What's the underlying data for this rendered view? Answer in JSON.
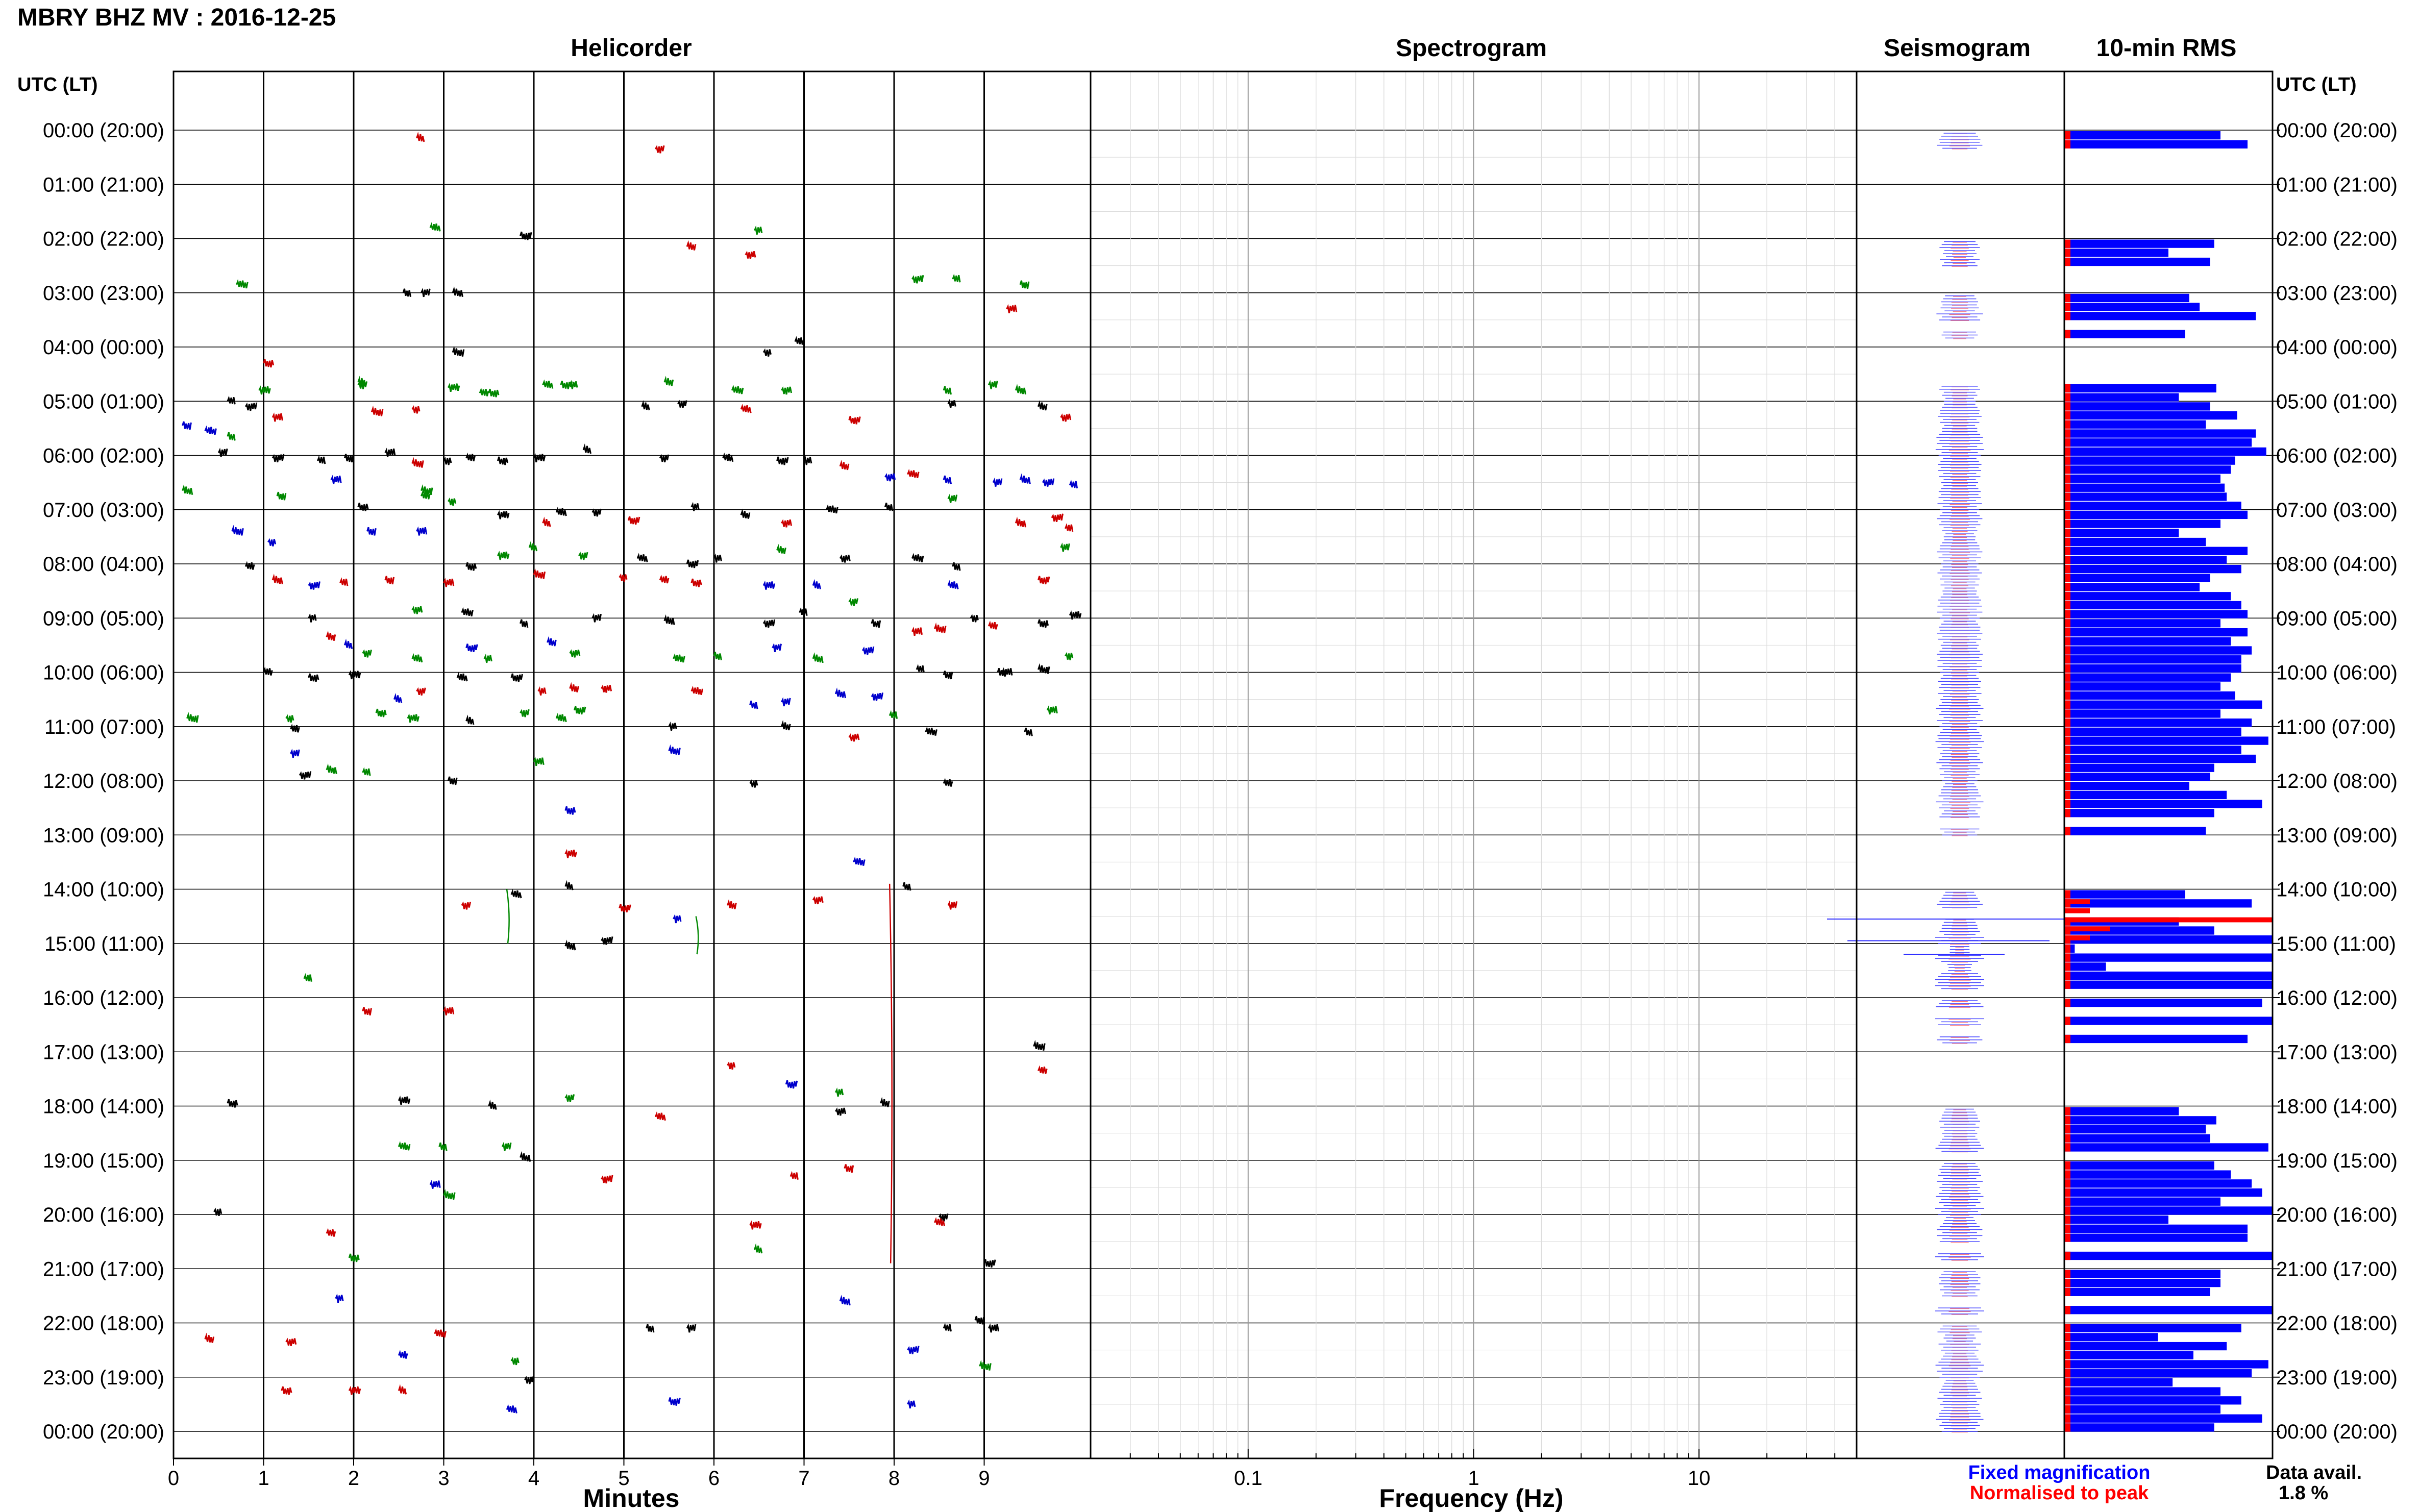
{
  "header": {
    "title": "MBRY BHZ MV : 2016-12-25"
  },
  "panels": {
    "helicorder": "Helicorder",
    "spectrogram": "Spectrogram",
    "seismogram": "Seismogram",
    "rms": "10-min RMS"
  },
  "axis_labels": {
    "utc_left": "UTC (LT)",
    "utc_right": "UTC (LT)",
    "minutes": "Minutes",
    "frequency": "Frequency (Hz)"
  },
  "legend": {
    "fixed": "Fixed magnification",
    "fixed_color": "#0000ff",
    "normalised": "Normalised to peak",
    "normalised_color": "#ff0000"
  },
  "data_avail": {
    "label": "Data avail.",
    "value": "1.8 %"
  },
  "colors": {
    "trace": [
      "#000000",
      "#cc0000",
      "#0000cc",
      "#008800"
    ],
    "rms_bar": "#0000ff",
    "rms_peak": "#ff0000"
  },
  "chart_data": [
    {
      "type": "scatter",
      "name": "helicorder",
      "title": "Helicorder",
      "xlabel": "Minutes",
      "ylabel": "UTC (LT)",
      "xlim": [
        0,
        10
      ],
      "x_ticks": [
        "0",
        "1",
        "2",
        "3",
        "4",
        "5",
        "6",
        "7",
        "8",
        "9"
      ],
      "y_ticks": [
        "00:00 (20:00)",
        "01:00 (21:00)",
        "02:00 (22:00)",
        "03:00 (23:00)",
        "04:00 (00:00)",
        "05:00 (01:00)",
        "06:00 (02:00)",
        "07:00 (03:00)",
        "08:00 (04:00)",
        "09:00 (05:00)",
        "10:00 (06:00)",
        "11:00 (07:00)",
        "12:00 (08:00)",
        "13:00 (09:00)",
        "14:00 (10:00)",
        "15:00 (11:00)",
        "16:00 (12:00)",
        "17:00 (13:00)",
        "18:00 (14:00)",
        "19:00 (15:00)",
        "20:00 (16:00)",
        "21:00 (17:00)",
        "22:00 (18:00)",
        "23:00 (19:00)",
        "00:00 (20:00)"
      ],
      "events": [
        [
          2.7,
          0.15
        ],
        [
          5.35,
          0.35
        ],
        [
          2.85,
          1.8
        ],
        [
          3.85,
          1.95
        ],
        [
          6.45,
          1.85
        ],
        [
          5.7,
          2.15
        ],
        [
          6.35,
          2.3
        ],
        [
          0.7,
          2.85
        ],
        [
          2.55,
          3.0
        ],
        [
          2.75,
          3.0
        ],
        [
          3.1,
          3.0
        ],
        [
          8.2,
          2.75
        ],
        [
          8.65,
          2.75
        ],
        [
          9.4,
          2.85
        ],
        [
          9.25,
          3.3
        ],
        [
          3.1,
          4.1
        ],
        [
          6.55,
          4.1
        ],
        [
          6.9,
          3.9
        ],
        [
          1.0,
          4.3
        ],
        [
          0.95,
          4.8
        ],
        [
          2.05,
          4.65
        ],
        [
          2.05,
          4.7
        ],
        [
          4.1,
          4.7
        ],
        [
          4.3,
          4.7
        ],
        [
          4.4,
          4.7
        ],
        [
          5.45,
          4.65
        ],
        [
          6.75,
          4.8
        ],
        [
          6.2,
          4.8
        ],
        [
          8.55,
          4.8
        ],
        [
          9.05,
          4.7
        ],
        [
          9.35,
          4.8
        ],
        [
          0.8,
          5.1
        ],
        [
          0.6,
          5.0
        ],
        [
          0.1,
          5.45
        ],
        [
          1.1,
          5.3
        ],
        [
          2.2,
          5.2
        ],
        [
          2.65,
          5.15
        ],
        [
          3.4,
          4.85
        ],
        [
          3.5,
          4.85
        ],
        [
          3.05,
          4.75
        ],
        [
          5.2,
          5.1
        ],
        [
          5.6,
          5.05
        ],
        [
          6.3,
          5.15
        ],
        [
          7.5,
          5.35
        ],
        [
          8.6,
          5.05
        ],
        [
          9.6,
          5.1
        ],
        [
          9.85,
          5.3
        ],
        [
          0.35,
          5.55
        ],
        [
          0.6,
          5.65
        ],
        [
          0.5,
          5.95
        ],
        [
          0.1,
          6.65
        ],
        [
          1.1,
          6.05
        ],
        [
          1.6,
          6.1
        ],
        [
          1.9,
          6.05
        ],
        [
          2.35,
          5.95
        ],
        [
          2.65,
          6.15
        ],
        [
          3.0,
          6.1
        ],
        [
          3.25,
          6.05
        ],
        [
          3.6,
          6.1
        ],
        [
          4.0,
          6.05
        ],
        [
          4.55,
          5.9
        ],
        [
          5.4,
          6.05
        ],
        [
          6.1,
          6.05
        ],
        [
          6.7,
          6.1
        ],
        [
          7.0,
          6.1
        ],
        [
          7.4,
          6.2
        ],
        [
          7.9,
          6.4
        ],
        [
          8.15,
          6.35
        ],
        [
          8.55,
          6.45
        ],
        [
          9.1,
          6.5
        ],
        [
          9.4,
          6.45
        ],
        [
          9.65,
          6.5
        ],
        [
          9.95,
          6.55
        ],
        [
          1.15,
          6.75
        ],
        [
          1.75,
          6.45
        ],
        [
          2.75,
          6.65
        ],
        [
          3.05,
          6.85
        ],
        [
          2.75,
          6.75
        ],
        [
          2.05,
          6.95
        ],
        [
          3.6,
          7.1
        ],
        [
          4.1,
          7.25
        ],
        [
          4.65,
          7.05
        ],
        [
          4.25,
          7.05
        ],
        [
          5.05,
          7.2
        ],
        [
          5.75,
          6.95
        ],
        [
          6.3,
          7.1
        ],
        [
          6.75,
          7.25
        ],
        [
          7.25,
          7.0
        ],
        [
          7.9,
          6.95
        ],
        [
          8.6,
          6.8
        ],
        [
          9.35,
          7.25
        ],
        [
          9.75,
          7.15
        ],
        [
          9.9,
          7.35
        ],
        [
          2.15,
          7.4
        ],
        [
          2.7,
          7.4
        ],
        [
          0.65,
          7.4
        ],
        [
          1.05,
          7.6
        ],
        [
          0.8,
          8.05
        ],
        [
          3.25,
          8.05
        ],
        [
          3.6,
          7.85
        ],
        [
          3.95,
          7.7
        ],
        [
          4.5,
          7.85
        ],
        [
          5.15,
          7.9
        ],
        [
          5.7,
          8.0
        ],
        [
          6.0,
          7.9
        ],
        [
          6.7,
          7.75
        ],
        [
          7.4,
          7.9
        ],
        [
          8.2,
          7.9
        ],
        [
          8.65,
          8.05
        ],
        [
          9.85,
          7.7
        ],
        [
          1.1,
          8.3
        ],
        [
          1.5,
          8.4
        ],
        [
          1.85,
          8.35
        ],
        [
          2.35,
          8.3
        ],
        [
          3.0,
          8.35
        ],
        [
          4.0,
          8.2
        ],
        [
          4.95,
          8.25
        ],
        [
          5.4,
          8.3
        ],
        [
          5.75,
          8.35
        ],
        [
          6.55,
          8.4
        ],
        [
          7.1,
          8.4
        ],
        [
          7.5,
          8.7
        ],
        [
          8.6,
          8.4
        ],
        [
          9.6,
          8.3
        ],
        [
          1.5,
          9.0
        ],
        [
          1.7,
          9.35
        ],
        [
          2.65,
          8.85
        ],
        [
          3.2,
          8.9
        ],
        [
          3.85,
          9.1
        ],
        [
          4.65,
          9.0
        ],
        [
          5.45,
          9.05
        ],
        [
          6.55,
          9.1
        ],
        [
          6.95,
          8.9
        ],
        [
          7.75,
          9.1
        ],
        [
          8.2,
          9.25
        ],
        [
          8.45,
          9.2
        ],
        [
          8.85,
          9.0
        ],
        [
          9.05,
          9.15
        ],
        [
          9.6,
          9.1
        ],
        [
          9.95,
          8.95
        ],
        [
          1.9,
          9.5
        ],
        [
          2.1,
          9.65
        ],
        [
          2.65,
          9.75
        ],
        [
          3.25,
          9.55
        ],
        [
          3.45,
          9.75
        ],
        [
          4.15,
          9.45
        ],
        [
          4.4,
          9.65
        ],
        [
          5.55,
          9.75
        ],
        [
          6.0,
          9.7
        ],
        [
          6.65,
          9.55
        ],
        [
          7.1,
          9.75
        ],
        [
          7.65,
          9.6
        ],
        [
          8.25,
          9.95
        ],
        [
          8.55,
          10.05
        ],
        [
          9.2,
          10.0
        ],
        [
          9.6,
          9.95
        ],
        [
          9.9,
          9.7
        ],
        [
          1.0,
          10.0
        ],
        [
          1.5,
          10.1
        ],
        [
          1.95,
          10.05
        ],
        [
          2.45,
          10.5
        ],
        [
          2.7,
          10.35
        ],
        [
          3.15,
          10.1
        ],
        [
          3.75,
          10.1
        ],
        [
          4.05,
          10.35
        ],
        [
          4.4,
          10.3
        ],
        [
          4.75,
          10.3
        ],
        [
          5.75,
          10.35
        ],
        [
          6.4,
          10.6
        ],
        [
          6.75,
          10.55
        ],
        [
          7.35,
          10.4
        ],
        [
          7.75,
          10.45
        ],
        [
          7.95,
          10.8
        ],
        [
          9.15,
          10.0
        ],
        [
          9.7,
          10.7
        ],
        [
          0.15,
          10.85
        ],
        [
          1.25,
          10.85
        ],
        [
          1.3,
          11.05
        ],
        [
          2.25,
          10.75
        ],
        [
          2.6,
          10.85
        ],
        [
          3.25,
          10.9
        ],
        [
          3.85,
          10.75
        ],
        [
          4.25,
          10.85
        ],
        [
          4.45,
          10.7
        ],
        [
          5.5,
          11.0
        ],
        [
          6.75,
          11.0
        ],
        [
          7.5,
          11.2
        ],
        [
          8.35,
          11.1
        ],
        [
          9.45,
          11.1
        ],
        [
          1.3,
          11.5
        ],
        [
          1.7,
          11.8
        ],
        [
          1.4,
          11.9
        ],
        [
          2.1,
          11.85
        ],
        [
          3.05,
          12.0
        ],
        [
          4.0,
          11.65
        ],
        [
          5.5,
          11.45
        ],
        [
          6.4,
          12.05
        ],
        [
          8.55,
          12.05
        ],
        [
          4.35,
          12.55
        ],
        [
          4.35,
          13.35
        ],
        [
          4.35,
          13.95
        ],
        [
          3.2,
          14.3
        ],
        [
          3.75,
          14.1
        ],
        [
          4.95,
          14.35
        ],
        [
          5.55,
          14.55
        ],
        [
          6.15,
          14.3
        ],
        [
          7.1,
          14.2
        ],
        [
          7.55,
          13.5
        ],
        [
          8.1,
          13.95
        ],
        [
          8.6,
          14.3
        ],
        [
          4.35,
          15.05
        ],
        [
          4.75,
          14.95
        ],
        [
          1.45,
          15.65
        ],
        [
          2.1,
          16.25
        ],
        [
          3.0,
          16.25
        ],
        [
          9.55,
          16.9
        ],
        [
          6.15,
          17.25
        ],
        [
          9.6,
          17.35
        ],
        [
          0.6,
          17.95
        ],
        [
          2.5,
          17.9
        ],
        [
          3.5,
          18.0
        ],
        [
          4.35,
          17.85
        ],
        [
          5.35,
          18.2
        ],
        [
          6.8,
          17.6
        ],
        [
          7.35,
          17.75
        ],
        [
          7.85,
          17.95
        ],
        [
          7.35,
          18.1
        ],
        [
          2.5,
          18.75
        ],
        [
          2.95,
          18.75
        ],
        [
          3.65,
          18.75
        ],
        [
          3.85,
          18.95
        ],
        [
          4.75,
          19.35
        ],
        [
          6.85,
          19.3
        ],
        [
          7.45,
          19.15
        ],
        [
          2.85,
          19.45
        ],
        [
          3.0,
          19.65
        ],
        [
          0.45,
          19.95
        ],
        [
          1.7,
          20.35
        ],
        [
          1.95,
          20.8
        ],
        [
          6.4,
          20.2
        ],
        [
          6.45,
          20.65
        ],
        [
          8.5,
          20.05
        ],
        [
          8.45,
          20.15
        ],
        [
          9.0,
          20.9
        ],
        [
          1.8,
          21.55
        ],
        [
          0.35,
          22.3
        ],
        [
          1.25,
          22.35
        ],
        [
          2.9,
          22.2
        ],
        [
          5.25,
          22.1
        ],
        [
          5.7,
          22.1
        ],
        [
          7.4,
          21.6
        ],
        [
          8.15,
          22.5
        ],
        [
          8.55,
          22.1
        ],
        [
          8.9,
          21.95
        ],
        [
          9.05,
          22.1
        ],
        [
          8.95,
          22.8
        ],
        [
          3.75,
          22.7
        ],
        [
          2.5,
          22.6
        ],
        [
          1.2,
          23.25
        ],
        [
          1.95,
          23.25
        ],
        [
          2.5,
          23.25
        ],
        [
          3.9,
          23.05
        ],
        [
          3.7,
          23.6
        ],
        [
          5.5,
          23.45
        ],
        [
          8.15,
          23.5
        ]
      ]
    },
    {
      "type": "line",
      "name": "spectrogram",
      "title": "Spectrogram",
      "xlabel": "Frequency (Hz)",
      "x_scale": "log",
      "xlim": [
        0.02,
        50
      ],
      "x_ticks": [
        "0.1",
        "1",
        "10"
      ],
      "grid": true
    },
    {
      "type": "bar",
      "name": "10-min RMS",
      "title": "10-min RMS",
      "orientation": "horizontal",
      "rows_per_hour": 6,
      "values": [
        0.75,
        0.88,
        0,
        0,
        0,
        0,
        0,
        0,
        0,
        0,
        0,
        0,
        0.72,
        0.5,
        0.7,
        0,
        0,
        0,
        0.6,
        0.65,
        0.92,
        0,
        0.58,
        0,
        0,
        0,
        0,
        0,
        0.73,
        0.55,
        0.7,
        0.83,
        0.68,
        0.92,
        0.9,
        0.97,
        0.82,
        0.8,
        0.75,
        0.77,
        0.78,
        0.85,
        0.88,
        0.75,
        0.55,
        0.68,
        0.88,
        0.78,
        0.85,
        0.7,
        0.65,
        0.8,
        0.85,
        0.88,
        0.75,
        0.88,
        0.8,
        0.9,
        0.85,
        0.85,
        0.8,
        0.75,
        0.82,
        0.95,
        0.75,
        0.9,
        0.85,
        0.98,
        0.85,
        0.92,
        0.72,
        0.7,
        0.6,
        0.78,
        0.95,
        0.72,
        0,
        0.68,
        0,
        0,
        0,
        0,
        0,
        0,
        0.58,
        0.9,
        0,
        0.55,
        0.72,
        1.0,
        0.05,
        1.0,
        0.2,
        1.0,
        1.0,
        0,
        0.95,
        0,
        1.0,
        0,
        0.88,
        0,
        0,
        0,
        0,
        0,
        0,
        0,
        0.55,
        0.73,
        0.68,
        0.7,
        0.98,
        0,
        0.72,
        0.8,
        0.9,
        0.95,
        0.75,
        1.0,
        0.5,
        0.88,
        0.88,
        0,
        1.0,
        0,
        0.75,
        0.75,
        0.7,
        0,
        1.0,
        0,
        0.85,
        0.45,
        0.78,
        0.62,
        0.98,
        0.9,
        0.52,
        0.75,
        0.85,
        0.75,
        0.95,
        0.72
      ],
      "peak_marks": [
        2,
        3,
        4,
        5,
        6,
        7,
        8,
        9,
        10,
        11,
        12,
        13,
        14,
        15,
        16,
        17,
        18,
        19,
        20,
        21,
        22,
        23
      ],
      "strong_peak_rows": [
        85,
        86,
        87,
        88,
        89
      ]
    }
  ]
}
